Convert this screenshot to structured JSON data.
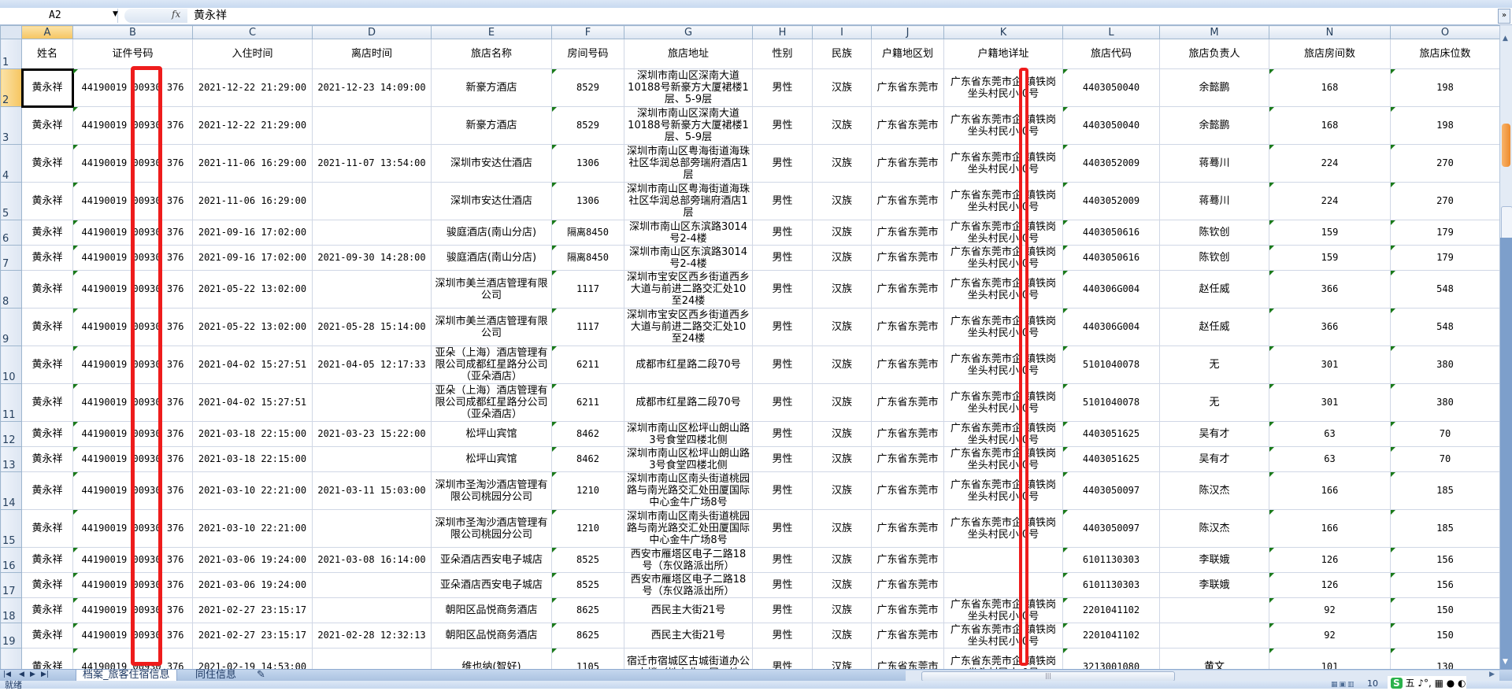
{
  "formula_bar": {
    "name_box": "A2",
    "fx_label": "fx",
    "content": "黄永祥"
  },
  "columns": [
    "A",
    "B",
    "C",
    "D",
    "E",
    "F",
    "G",
    "H",
    "I",
    "J",
    "K",
    "L",
    "M",
    "N",
    "O"
  ],
  "selected_cell": {
    "column": "A",
    "row": 2
  },
  "headers": [
    "姓名",
    "证件号码",
    "入住时间",
    "离店时间",
    "旅店名称",
    "房间号码",
    "旅店地址",
    "性别",
    "民族",
    "户籍地区划",
    "户籍地详址",
    "旅店代码",
    "旅店负责人",
    "旅店房间数",
    "旅店床位数"
  ],
  "rows": [
    [
      "黄永祥",
      "44190019 00930 376",
      "2021-12-22 21:29:00",
      "2021-12-23 14:09:00",
      "新豪方酒店",
      "8529",
      "深圳市南山区深南大道10188号新豪方大厦裙楼1层、5-9层",
      "男性",
      "汉族",
      "广东省东莞市",
      "广东省东莞市企 镇铁岗坐头村民小 0号",
      "4403050040",
      "余懿鹏",
      "168",
      "198"
    ],
    [
      "黄永祥",
      "44190019 00930 376",
      "2021-12-22 21:29:00",
      "",
      "新豪方酒店",
      "8529",
      "深圳市南山区深南大道10188号新豪方大厦裙楼1层、5-9层",
      "男性",
      "汉族",
      "广东省东莞市",
      "广东省东莞市企 镇铁岗坐头村民小 0号",
      "4403050040",
      "余懿鹏",
      "168",
      "198"
    ],
    [
      "黄永祥",
      "44190019 00930 376",
      "2021-11-06 16:29:00",
      "2021-11-07 13:54:00",
      "深圳市安达仕酒店",
      "1306",
      "深圳市南山区粤海街道海珠社区华润总部旁瑞府酒店1层",
      "男性",
      "汉族",
      "广东省东莞市",
      "广东省东莞市企 镇铁岗坐头村民小 0号",
      "4403052009",
      "蒋蓦川",
      "224",
      "270"
    ],
    [
      "黄永祥",
      "44190019 00930 376",
      "2021-11-06 16:29:00",
      "",
      "深圳市安达仕酒店",
      "1306",
      "深圳市南山区粤海街道海珠社区华润总部旁瑞府酒店1层",
      "男性",
      "汉族",
      "广东省东莞市",
      "广东省东莞市企 镇铁岗坐头村民小 0号",
      "4403052009",
      "蒋蓦川",
      "224",
      "270"
    ],
    [
      "黄永祥",
      "44190019 00930 376",
      "2021-09-16 17:02:00",
      "",
      "骏庭酒店(南山分店)",
      "隔离8450",
      "深圳市南山区东滨路3014号2-4楼",
      "男性",
      "汉族",
      "广东省东莞市",
      "广东省东莞市企 镇铁岗坐头村民小 0号",
      "4403050616",
      "陈钦创",
      "159",
      "179"
    ],
    [
      "黄永祥",
      "44190019 00930 376",
      "2021-09-16 17:02:00",
      "2021-09-30 14:28:00",
      "骏庭酒店(南山分店)",
      "隔离8450",
      "深圳市南山区东滨路3014号2-4楼",
      "男性",
      "汉族",
      "广东省东莞市",
      "广东省东莞市企 镇铁岗坐头村民小 0号",
      "4403050616",
      "陈钦创",
      "159",
      "179"
    ],
    [
      "黄永祥",
      "44190019 00930 376",
      "2021-05-22 13:02:00",
      "",
      "深圳市美兰酒店管理有限公司",
      "1117",
      "深圳市宝安区西乡街道西乡大道与前进二路交汇处10至24楼",
      "男性",
      "汉族",
      "广东省东莞市",
      "广东省东莞市企 镇铁岗坐头村民小 0号",
      "440306G004",
      "赵任威",
      "366",
      "548"
    ],
    [
      "黄永祥",
      "44190019 00930 376",
      "2021-05-22 13:02:00",
      "2021-05-28 15:14:00",
      "深圳市美兰酒店管理有限公司",
      "1117",
      "深圳市宝安区西乡街道西乡大道与前进二路交汇处10至24楼",
      "男性",
      "汉族",
      "广东省东莞市",
      "广东省东莞市企 镇铁岗坐头村民小 0号",
      "440306G004",
      "赵任威",
      "366",
      "548"
    ],
    [
      "黄永祥",
      "44190019 00930 376",
      "2021-04-02 15:27:51",
      "2021-04-05 12:17:33",
      "亚朵（上海）酒店管理有限公司成都红星路分公司（亚朵酒店）",
      "6211",
      "成都市红星路二段70号",
      "男性",
      "汉族",
      "广东省东莞市",
      "广东省东莞市企 镇铁岗坐头村民小 0号",
      "5101040078",
      "无",
      "301",
      "380"
    ],
    [
      "黄永祥",
      "44190019 00930 376",
      "2021-04-02 15:27:51",
      "",
      "亚朵（上海）酒店管理有限公司成都红星路分公司（亚朵酒店）",
      "6211",
      "成都市红星路二段70号",
      "男性",
      "汉族",
      "广东省东莞市",
      "广东省东莞市企 镇铁岗坐头村民小 0号",
      "5101040078",
      "无",
      "301",
      "380"
    ],
    [
      "黄永祥",
      "44190019 00930 376",
      "2021-03-18 22:15:00",
      "2021-03-23 15:22:00",
      "松坪山宾馆",
      "8462",
      "深圳市南山区松坪山朗山路3号食堂四楼北侧",
      "男性",
      "汉族",
      "广东省东莞市",
      "广东省东莞市企 镇铁岗坐头村民小 0号",
      "4403051625",
      "吴有才",
      "63",
      "70"
    ],
    [
      "黄永祥",
      "44190019 00930 376",
      "2021-03-18 22:15:00",
      "",
      "松坪山宾馆",
      "8462",
      "深圳市南山区松坪山朗山路3号食堂四楼北侧",
      "男性",
      "汉族",
      "广东省东莞市",
      "广东省东莞市企 镇铁岗坐头村民小 0号",
      "4403051625",
      "吴有才",
      "63",
      "70"
    ],
    [
      "黄永祥",
      "44190019 00930 376",
      "2021-03-10 22:21:00",
      "2021-03-11 15:03:00",
      "深圳市圣淘沙酒店管理有限公司桃园分公司",
      "1210",
      "深圳市南山区南头街道桃园路与南光路交汇处田厦国际中心金牛广场8号",
      "男性",
      "汉族",
      "广东省东莞市",
      "广东省东莞市企 镇铁岗坐头村民小 0号",
      "4403050097",
      "陈汉杰",
      "166",
      "185"
    ],
    [
      "黄永祥",
      "44190019 00930 376",
      "2021-03-10 22:21:00",
      "",
      "深圳市圣淘沙酒店管理有限公司桃园分公司",
      "1210",
      "深圳市南山区南头街道桃园路与南光路交汇处田厦国际中心金牛广场8号",
      "男性",
      "汉族",
      "广东省东莞市",
      "广东省东莞市企 镇铁岗坐头村民小 0号",
      "4403050097",
      "陈汉杰",
      "166",
      "185"
    ],
    [
      "黄永祥",
      "44190019 00930 376",
      "2021-03-06 19:24:00",
      "2021-03-08 16:14:00",
      "亚朵酒店西安电子城店",
      "8525",
      "西安市雁塔区电子二路18号（东仪路派出所）",
      "男性",
      "汉族",
      "广东省东莞市",
      "",
      "6101130303",
      "李联娥",
      "126",
      "156"
    ],
    [
      "黄永祥",
      "44190019 00930 376",
      "2021-03-06 19:24:00",
      "",
      "亚朵酒店西安电子城店",
      "8525",
      "西安市雁塔区电子二路18号（东仪路派出所）",
      "男性",
      "汉族",
      "广东省东莞市",
      "",
      "6101130303",
      "李联娥",
      "126",
      "156"
    ],
    [
      "黄永祥",
      "44190019 00930 376",
      "2021-02-27 23:15:17",
      "",
      "朝阳区品悦商务酒店",
      "8625",
      "西民主大街21号",
      "男性",
      "汉族",
      "广东省东莞市",
      "广东省东莞市企 镇铁岗坐头村民小 0号",
      "2201041102",
      "",
      "92",
      "150"
    ],
    [
      "黄永祥",
      "44190019 00930 376",
      "2021-02-27 23:15:17",
      "2021-02-28 12:32:13",
      "朝阳区品悦商务酒店",
      "8625",
      "西民主大街21号",
      "男性",
      "汉族",
      "广东省东莞市",
      "广东省东莞市企 镇铁岗坐头村民小 0号",
      "2201041102",
      "",
      "92",
      "150"
    ],
    [
      "黄永祥",
      "44190019 00930 376",
      "2021-02-19 14:53:00",
      "",
      "维也纳(智好)",
      "1105",
      "宿迁市宿城区古城街道办公大楼（地上北一层、地",
      "男性",
      "汉族",
      "广东省东莞市",
      "广东省东莞市企 镇铁岗坐头村民小 0号",
      "3213001080",
      "黄文",
      "101",
      "130"
    ]
  ],
  "sheet_tabs": [
    {
      "label": "档案_旅客住宿信息",
      "active": true
    },
    {
      "label": "同住信息",
      "active": false
    }
  ],
  "status": {
    "ready": "就绪",
    "zoom": "10"
  },
  "ime": {
    "logo": "S",
    "mode": "五"
  },
  "colors": {
    "annotation_red": "#ee1c1c",
    "selected_header": "#f6c560",
    "header_bg": "#dde6f2",
    "comment_triangle": "#1a7a1a"
  }
}
